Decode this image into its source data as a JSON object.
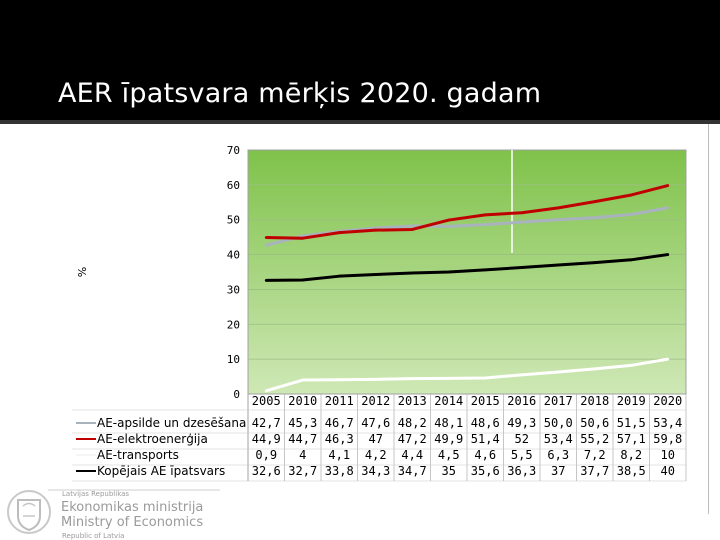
{
  "slide": {
    "title": "AER īpatsvara mērķis 2020. gadam",
    "ministry": {
      "small_top": "Latvijas Republikas",
      "name_lv": "Ekonomikas ministrija",
      "name_en": "Ministry of Economics",
      "small_bottom": "Republic of Latvia"
    }
  },
  "colors": {
    "header_bg": "#000000",
    "plot_bg_top": "#7fc24a",
    "plot_bg_bottom": "#cfe8b6"
  },
  "chart_data": {
    "type": "line",
    "ylabel": "%",
    "ylim": [
      0,
      70
    ],
    "yticks": [
      0,
      10,
      20,
      30,
      40,
      50,
      60,
      70
    ],
    "grid": true,
    "legend_placement": "data-table-left",
    "categories": [
      "2005",
      "2010",
      "2011",
      "2012",
      "2013",
      "2014",
      "2015",
      "2016",
      "2017",
      "2018",
      "2019",
      "2020"
    ],
    "series": [
      {
        "name": "AE-apsilde un dzesēšana",
        "color": "#a9b3bd",
        "values": [
          42.7,
          45.3,
          46.7,
          47.6,
          48.2,
          48.1,
          48.6,
          49.3,
          50.0,
          50.6,
          51.5,
          53.4
        ],
        "labels": [
          "42,7",
          "45,3",
          "46,7",
          "47,6",
          "48,2",
          "48,1",
          "48,6",
          "49,3",
          "50,0",
          "50,6",
          "51,5",
          "53,4"
        ]
      },
      {
        "name": "AE-elektroenerģija",
        "color": "#c00000",
        "values": [
          44.9,
          44.7,
          46.3,
          47,
          47.2,
          49.9,
          51.4,
          52,
          53.4,
          55.2,
          57.1,
          59.8
        ],
        "labels": [
          "44,9",
          "44,7",
          "46,3",
          "47",
          "47,2",
          "49,9",
          "51,4",
          "52",
          "53,4",
          "55,2",
          "57,1",
          "59,8"
        ]
      },
      {
        "name": "AE-transports",
        "color": "#ffffff",
        "values": [
          0.9,
          4,
          4.1,
          4.2,
          4.4,
          4.5,
          4.6,
          5.5,
          6.3,
          7.2,
          8.2,
          10
        ],
        "labels": [
          "0,9",
          "4",
          "4,1",
          "4,2",
          "4,4",
          "4,5",
          "4,6",
          "5,5",
          "6,3",
          "7,2",
          "8,2",
          "10"
        ]
      },
      {
        "name": "Kopējais AE īpatsvars",
        "color": "#000000",
        "values": [
          32.6,
          32.7,
          33.8,
          34.3,
          34.7,
          35,
          35.6,
          36.3,
          37,
          37.7,
          38.5,
          40
        ],
        "labels": [
          "32,6",
          "32,7",
          "33,8",
          "34,3",
          "34,7",
          "35",
          "35,6",
          "36,3",
          "37",
          "37,7",
          "38,5",
          "40"
        ]
      }
    ]
  }
}
